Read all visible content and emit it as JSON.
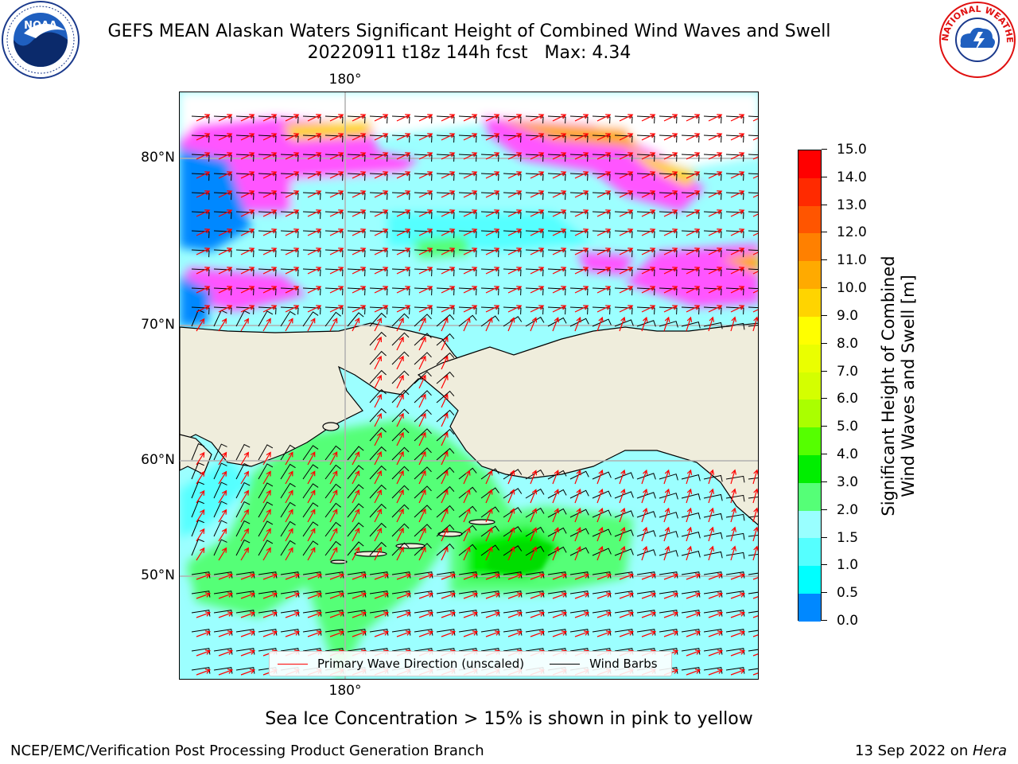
{
  "title": {
    "line1": "GEFS MEAN Alaskan Waters Significant Height of Combined Wind Waves and Swell",
    "line2": "20220911 t18z 144h fcst   Max: 4.34"
  },
  "map": {
    "lon_labels": {
      "top": "180°",
      "bottom": "180°"
    },
    "lat_labels": [
      "80°N",
      "70°N",
      "60°N",
      "50°N"
    ],
    "colors": {
      "land": "#efeddc",
      "gridline": "#b0b0b0",
      "wave_arrows": "#ff0000",
      "wind_barbs": "#000000"
    }
  },
  "legend": {
    "primary_wave_direction": "Primary Wave Direction (unscaled)",
    "wind_barbs": "Wind Barbs"
  },
  "colorbar": {
    "label_line1": "Significant Height of Combined",
    "label_line2": "Wind Waves and Swell [m]",
    "ticks": [
      "15.0",
      "14.0",
      "13.0",
      "12.0",
      "11.0",
      "10.0",
      "9.0",
      "8.0",
      "7.0",
      "6.0",
      "5.0",
      "4.0",
      "3.0",
      "2.0",
      "1.5",
      "1.0",
      "0.5",
      "0.0"
    ],
    "colors": [
      "#ff0000",
      "#ff2a00",
      "#ff5500",
      "#ff8000",
      "#ffaa00",
      "#ffd400",
      "#ffff00",
      "#eaff00",
      "#d4ff00",
      "#aaff00",
      "#55ff00",
      "#00ee00",
      "#55ff77",
      "#99ffff",
      "#55ffff",
      "#00ffff",
      "#0088ff",
      "#0000ff"
    ]
  },
  "caption": "Sea Ice Concentration > 15% is shown in pink to yellow",
  "footer": {
    "left": "NCEP/EMC/Verification Post Processing Product Generation Branch",
    "right_date": "13 Sep 2022 on ",
    "right_host": "Hera"
  },
  "logos": {
    "noaa_text": "NOAA",
    "nws_text": "NATIONAL WEATHER SERVICE"
  }
}
